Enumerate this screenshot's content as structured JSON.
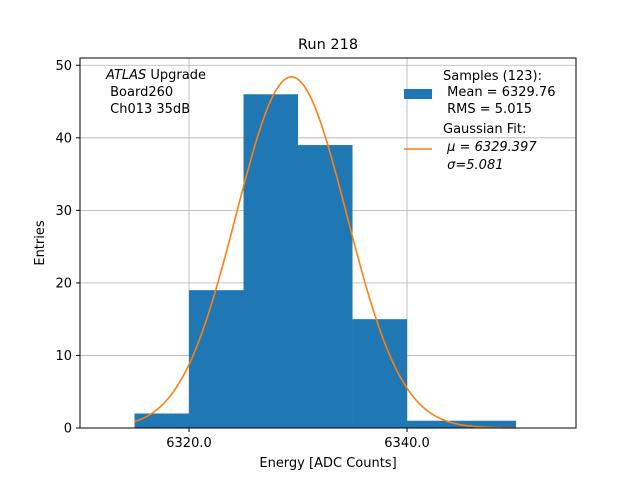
{
  "chart_data": {
    "type": "bar",
    "title": "Run 218",
    "xlabel": "Energy [ADC Counts]",
    "ylabel": "Entries",
    "xlim": [
      6310.0,
      6355.5
    ],
    "ylim": [
      0,
      51
    ],
    "xticks": [
      6320.0,
      6340.0
    ],
    "xtick_labels": [
      "6320.0",
      "6340.0"
    ],
    "yticks": [
      0,
      10,
      20,
      30,
      40,
      50
    ],
    "grid": true,
    "bar_color": "#1f77b4",
    "fit_color": "#ff7f0e",
    "histogram": {
      "bin_edges": [
        6315,
        6320,
        6325,
        6330,
        6335,
        6340,
        6345,
        6350
      ],
      "counts": [
        2,
        19,
        46,
        39,
        15,
        1,
        1
      ]
    },
    "gaussian_fit": {
      "mu": 6329.397,
      "sigma": 5.081,
      "amplitude": 48.4,
      "x_range": [
        6315,
        6350
      ]
    },
    "annotation": {
      "line1_italic": "ATLAS",
      "line1_rest": " Upgrade",
      "line2": " Board260",
      "line3": " Ch013 35dB"
    },
    "legend": {
      "position": "upper right",
      "samples_lines": [
        "Samples (123):",
        " Mean = 6329.76",
        " RMS = 5.015"
      ],
      "fit_lines": [
        "Gaussian Fit:",
        "μ = 6329.397",
        "σ=5.081"
      ],
      "fit_prefix": " "
    }
  }
}
